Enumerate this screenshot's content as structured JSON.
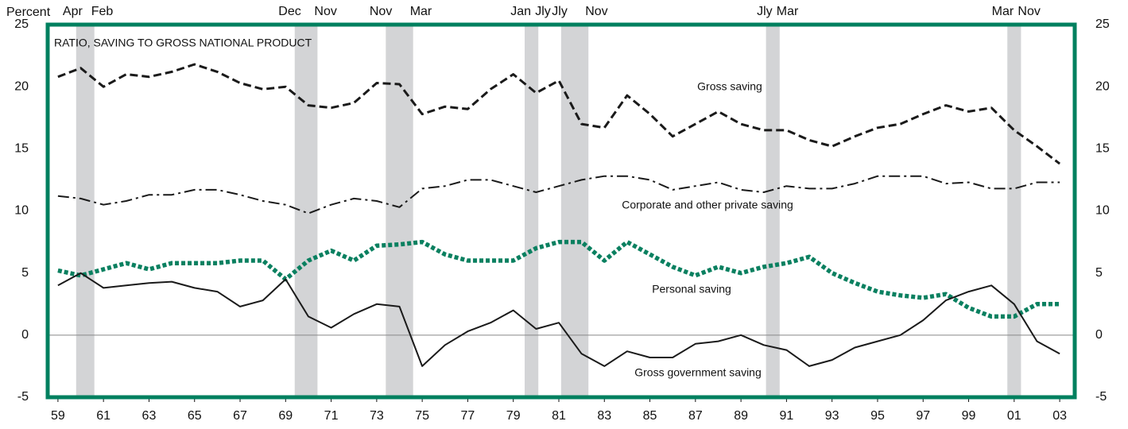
{
  "chart_data": {
    "type": "line",
    "title": "RATIO, SAVING TO GROSS NATIONAL PRODUCT",
    "y_label": "Percent",
    "xlim": [
      1959.05,
      2004.16
    ],
    "ylim": [
      -5,
      25
    ],
    "yticks": [
      -5,
      0,
      5,
      10,
      15,
      20,
      25
    ],
    "xticks": [
      {
        "value": 1959.5,
        "label": "59"
      },
      {
        "value": 1961.5,
        "label": "61"
      },
      {
        "value": 1963.5,
        "label": "63"
      },
      {
        "value": 1965.5,
        "label": "65"
      },
      {
        "value": 1967.5,
        "label": "67"
      },
      {
        "value": 1969.5,
        "label": "69"
      },
      {
        "value": 1971.5,
        "label": "71"
      },
      {
        "value": 1973.5,
        "label": "73"
      },
      {
        "value": 1975.5,
        "label": "75"
      },
      {
        "value": 1977.5,
        "label": "77"
      },
      {
        "value": 1979.5,
        "label": "79"
      },
      {
        "value": 1981.5,
        "label": "81"
      },
      {
        "value": 1983.5,
        "label": "83"
      },
      {
        "value": 1985.5,
        "label": "85"
      },
      {
        "value": 1987.5,
        "label": "87"
      },
      {
        "value": 1989.5,
        "label": "89"
      },
      {
        "value": 1991.5,
        "label": "91"
      },
      {
        "value": 1993.5,
        "label": "93"
      },
      {
        "value": 1995.5,
        "label": "95"
      },
      {
        "value": 1997.5,
        "label": "97"
      },
      {
        "value": 1999.5,
        "label": "99"
      },
      {
        "value": 2001.5,
        "label": "01"
      },
      {
        "value": 2003.5,
        "label": "03"
      }
    ],
    "recessions": [
      {
        "start": 1960.3,
        "end": 1961.1,
        "start_label": "Apr",
        "end_label": "Feb"
      },
      {
        "start": 1969.9,
        "end": 1970.9,
        "start_label": "Dec",
        "end_label": "Nov"
      },
      {
        "start": 1973.9,
        "end": 1975.1,
        "start_label": "Nov",
        "end_label": "Mar"
      },
      {
        "start": 1980.0,
        "end": 1980.6,
        "start_label": "Jan",
        "end_label": "Jly"
      },
      {
        "start": 1981.6,
        "end": 1982.8,
        "start_label": "Jly",
        "end_label": "Nov"
      },
      {
        "start": 1990.6,
        "end": 1991.2,
        "start_label": "Jly",
        "end_label": "Mar"
      },
      {
        "start": 2001.2,
        "end": 2001.8,
        "start_label": "Mar",
        "end_label": "Nov"
      }
    ],
    "x": [
      1959.5,
      1960.5,
      1961.5,
      1962.5,
      1963.5,
      1964.5,
      1965.5,
      1966.5,
      1967.5,
      1968.5,
      1969.5,
      1970.5,
      1971.5,
      1972.5,
      1973.5,
      1974.5,
      1975.5,
      1976.5,
      1977.5,
      1978.5,
      1979.5,
      1980.5,
      1981.5,
      1982.5,
      1983.5,
      1984.5,
      1985.5,
      1986.5,
      1987.5,
      1988.5,
      1989.5,
      1990.5,
      1991.5,
      1992.5,
      1993.5,
      1994.5,
      1995.5,
      1996.5,
      1997.5,
      1998.5,
      1999.5,
      2000.5,
      2001.5,
      2002.5,
      2003.5
    ],
    "series": [
      {
        "name": "Gross saving",
        "color": "#1a1a1a",
        "values": [
          20.8,
          21.5,
          20.0,
          21.0,
          20.8,
          21.2,
          21.8,
          21.2,
          20.3,
          19.8,
          20.0,
          18.5,
          18.3,
          18.7,
          20.3,
          20.2,
          17.8,
          18.4,
          18.2,
          19.8,
          21.0,
          19.5,
          20.5,
          17.0,
          16.7,
          19.3,
          17.8,
          16.0,
          17.0,
          18.0,
          17.0,
          16.5,
          16.5,
          15.7,
          15.2,
          16.0,
          16.7,
          17.0,
          17.8,
          18.5,
          18.0,
          18.3,
          16.5,
          15.2,
          13.8
        ]
      },
      {
        "name": "Corporate and other private saving",
        "color": "#1a1a1a",
        "values": [
          11.2,
          11.0,
          10.5,
          10.8,
          11.3,
          11.3,
          11.7,
          11.7,
          11.3,
          10.8,
          10.5,
          9.8,
          10.5,
          11.0,
          10.8,
          10.3,
          11.8,
          12.0,
          12.5,
          12.5,
          12.0,
          11.5,
          12.0,
          12.5,
          12.8,
          12.8,
          12.5,
          11.7,
          12.0,
          12.3,
          11.7,
          11.5,
          12.0,
          11.8,
          11.8,
          12.2,
          12.8,
          12.8,
          12.8,
          12.2,
          12.3,
          11.8,
          11.8,
          12.3,
          12.3
        ]
      },
      {
        "name": "Personal saving",
        "color": "#0a8060",
        "values": [
          5.2,
          4.8,
          5.3,
          5.8,
          5.3,
          5.8,
          5.8,
          5.8,
          6.0,
          6.0,
          4.5,
          6.0,
          6.8,
          6.0,
          7.2,
          7.3,
          7.5,
          6.5,
          6.0,
          6.0,
          6.0,
          7.0,
          7.5,
          7.5,
          6.0,
          7.5,
          6.5,
          5.5,
          4.8,
          5.5,
          5.0,
          5.5,
          5.8,
          6.3,
          5.0,
          4.2,
          3.5,
          3.2,
          3.0,
          3.3,
          2.2,
          1.5,
          1.5,
          2.5,
          2.5
        ]
      },
      {
        "name": "Gross government saving",
        "color": "#1a1a1a",
        "values": [
          4.0,
          5.0,
          3.8,
          4.0,
          4.2,
          4.3,
          3.8,
          3.5,
          2.3,
          2.8,
          4.5,
          1.5,
          0.6,
          1.7,
          2.5,
          2.3,
          -2.5,
          -0.8,
          0.3,
          1.0,
          2.0,
          0.5,
          1.0,
          -1.5,
          -2.5,
          -1.3,
          -1.8,
          -1.8,
          -0.7,
          -0.5,
          0.0,
          -0.8,
          -1.2,
          -2.5,
          -2.0,
          -1.0,
          -0.5,
          0.0,
          1.2,
          2.8,
          3.5,
          4.0,
          2.5,
          -0.5,
          -1.5
        ]
      }
    ]
  }
}
